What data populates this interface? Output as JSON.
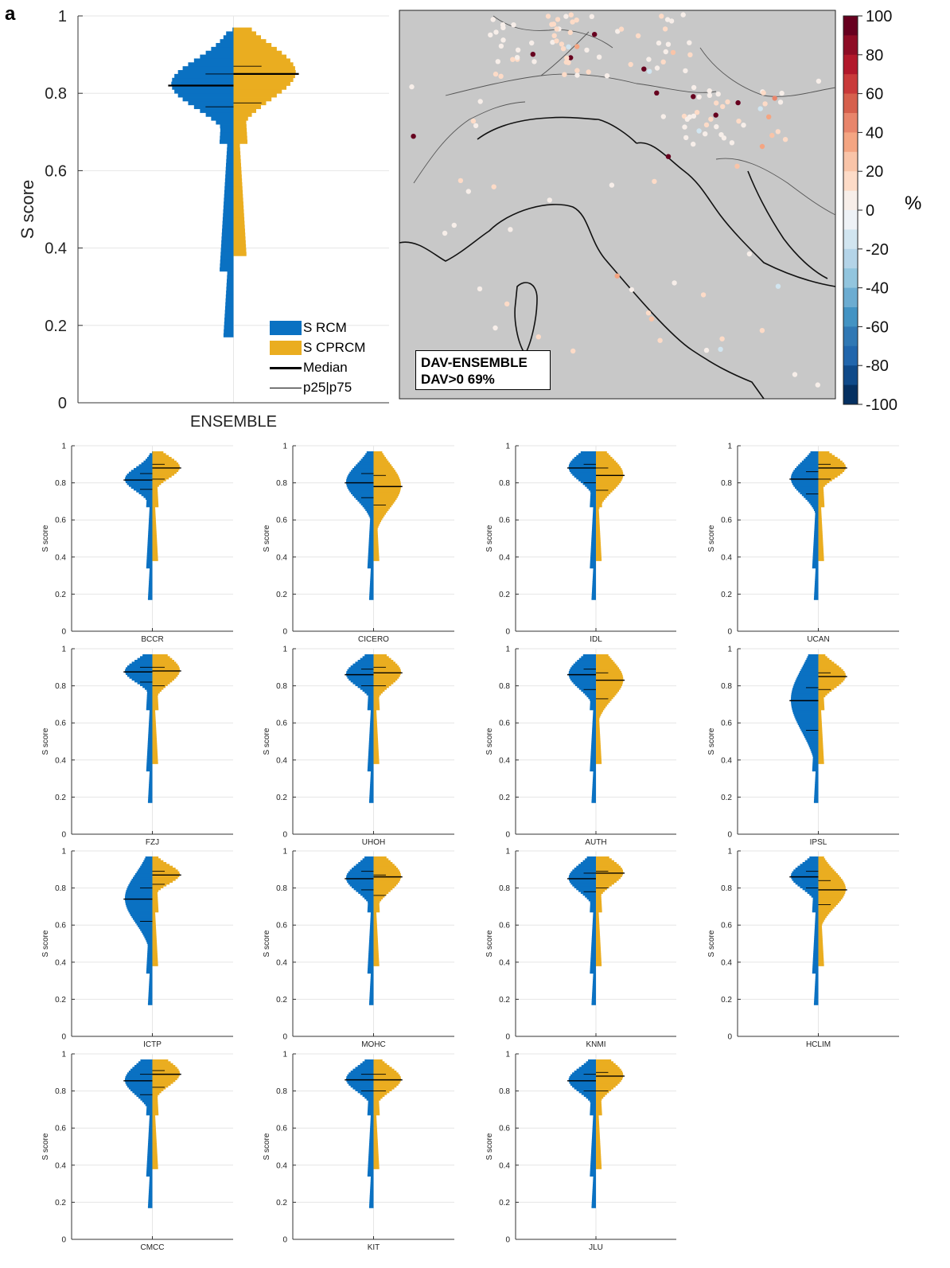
{
  "panel_label": "a",
  "colors": {
    "rcm": "#0a71c2",
    "cprcm": "#eaad20",
    "median": "#000000",
    "map_bg": "#c8c8c8"
  },
  "legend": {
    "rcm": "S RCM",
    "cprcm": "S CPRCM",
    "median": "Median",
    "pct": "p25|p75"
  },
  "map": {
    "title": "DAV-ENSEMBLE",
    "subtitle": "DAV>0 69%",
    "colorbar_ticks": [
      "100",
      "80",
      "60",
      "40",
      "20",
      "0",
      "-20",
      "-40",
      "-60",
      "-80",
      "-100"
    ],
    "colorbar_unit": "%"
  },
  "chart_data": [
    {
      "type": "bar",
      "name": "ENSEMBLE",
      "xlabel": "ENSEMBLE",
      "ylabel": "S score",
      "ylim": [
        0,
        1
      ],
      "yticks": [
        "0",
        "0.2",
        "0.4",
        "0.6",
        "0.8",
        "1"
      ],
      "series": [
        {
          "name": "S RCM",
          "side": "left",
          "median": 0.82,
          "p25": 0.765,
          "p75": 0.85
        },
        {
          "name": "S CPRCM",
          "side": "right",
          "median": 0.85,
          "p25": 0.775,
          "p75": 0.87
        }
      ]
    },
    {
      "type": "bar",
      "xlabel": "BCCR",
      "ylabel": "S score",
      "ylim": [
        0,
        1
      ],
      "yticks": [
        "0",
        "0.2",
        "0.4",
        "0.6",
        "0.8",
        "1"
      ],
      "series": [
        {
          "name": "S RCM",
          "median": 0.815,
          "p25": 0.765,
          "p75": 0.85
        },
        {
          "name": "S CPRCM",
          "median": 0.88,
          "p25": 0.82,
          "p75": 0.9
        }
      ]
    },
    {
      "type": "bar",
      "xlabel": "CICERO",
      "ylabel": "S score",
      "ylim": [
        0,
        1
      ],
      "yticks": [
        "0",
        "0.2",
        "0.4",
        "0.6",
        "0.8",
        "1"
      ],
      "series": [
        {
          "name": "S RCM",
          "median": 0.8,
          "p25": 0.72,
          "p75": 0.85
        },
        {
          "name": "S CPRCM",
          "median": 0.78,
          "p25": 0.68,
          "p75": 0.84
        }
      ]
    },
    {
      "type": "bar",
      "xlabel": "IDL",
      "ylabel": "S score",
      "ylim": [
        0,
        1
      ],
      "yticks": [
        "0",
        "0.2",
        "0.4",
        "0.6",
        "0.8",
        "1"
      ],
      "series": [
        {
          "name": "S RCM",
          "median": 0.88,
          "p25": 0.8,
          "p75": 0.9
        },
        {
          "name": "S CPRCM",
          "median": 0.84,
          "p25": 0.76,
          "p75": 0.88
        }
      ]
    },
    {
      "type": "bar",
      "xlabel": "UCAN",
      "ylabel": "S score",
      "ylim": [
        0,
        1
      ],
      "yticks": [
        "0",
        "0.2",
        "0.4",
        "0.6",
        "0.8",
        "1"
      ],
      "series": [
        {
          "name": "S RCM",
          "median": 0.82,
          "p25": 0.74,
          "p75": 0.86
        },
        {
          "name": "S CPRCM",
          "median": 0.88,
          "p25": 0.82,
          "p75": 0.9
        }
      ]
    },
    {
      "type": "bar",
      "xlabel": "FZJ",
      "ylabel": "S score",
      "ylim": [
        0,
        1
      ],
      "yticks": [
        "0",
        "0.2",
        "0.4",
        "0.6",
        "0.8",
        "1"
      ],
      "series": [
        {
          "name": "S RCM",
          "median": 0.875,
          "p25": 0.82,
          "p75": 0.9
        },
        {
          "name": "S CPRCM",
          "median": 0.88,
          "p25": 0.8,
          "p75": 0.9
        }
      ]
    },
    {
      "type": "bar",
      "xlabel": "UHOH",
      "ylabel": "S score",
      "ylim": [
        0,
        1
      ],
      "yticks": [
        "0",
        "0.2",
        "0.4",
        "0.6",
        "0.8",
        "1"
      ],
      "series": [
        {
          "name": "S RCM",
          "median": 0.86,
          "p25": 0.8,
          "p75": 0.89
        },
        {
          "name": "S CPRCM",
          "median": 0.87,
          "p25": 0.8,
          "p75": 0.9
        }
      ]
    },
    {
      "type": "bar",
      "xlabel": "AUTH",
      "ylabel": "S score",
      "ylim": [
        0,
        1
      ],
      "yticks": [
        "0",
        "0.2",
        "0.4",
        "0.6",
        "0.8",
        "1"
      ],
      "series": [
        {
          "name": "S RCM",
          "median": 0.86,
          "p25": 0.78,
          "p75": 0.89
        },
        {
          "name": "S CPRCM",
          "median": 0.83,
          "p25": 0.73,
          "p75": 0.87
        }
      ]
    },
    {
      "type": "bar",
      "xlabel": "IPSL",
      "ylabel": "S score",
      "ylim": [
        0,
        1
      ],
      "yticks": [
        "0",
        "0.2",
        "0.4",
        "0.6",
        "0.8",
        "1"
      ],
      "series": [
        {
          "name": "S RCM",
          "median": 0.72,
          "p25": 0.56,
          "p75": 0.79
        },
        {
          "name": "S CPRCM",
          "median": 0.85,
          "p25": 0.78,
          "p75": 0.87
        }
      ]
    },
    {
      "type": "bar",
      "xlabel": "ICTP",
      "ylabel": "S score",
      "ylim": [
        0,
        1
      ],
      "yticks": [
        "0",
        "0.2",
        "0.4",
        "0.6",
        "0.8",
        "1"
      ],
      "series": [
        {
          "name": "S RCM",
          "median": 0.74,
          "p25": 0.62,
          "p75": 0.8
        },
        {
          "name": "S CPRCM",
          "median": 0.87,
          "p25": 0.82,
          "p75": 0.89
        }
      ]
    },
    {
      "type": "bar",
      "xlabel": "MOHC",
      "ylabel": "S score",
      "ylim": [
        0,
        1
      ],
      "yticks": [
        "0",
        "0.2",
        "0.4",
        "0.6",
        "0.8",
        "1"
      ],
      "series": [
        {
          "name": "S RCM",
          "median": 0.85,
          "p25": 0.79,
          "p75": 0.89
        },
        {
          "name": "S CPRCM",
          "median": 0.86,
          "p25": 0.76,
          "p75": 0.87
        }
      ]
    },
    {
      "type": "bar",
      "xlabel": "KNMI",
      "ylabel": "S score",
      "ylim": [
        0,
        1
      ],
      "yticks": [
        "0",
        "0.2",
        "0.4",
        "0.6",
        "0.8",
        "1"
      ],
      "series": [
        {
          "name": "S RCM",
          "median": 0.85,
          "p25": 0.78,
          "p75": 0.88
        },
        {
          "name": "S CPRCM",
          "median": 0.88,
          "p25": 0.8,
          "p75": 0.89
        }
      ]
    },
    {
      "type": "bar",
      "xlabel": "HCLIM",
      "ylabel": "S score",
      "ylim": [
        0,
        1
      ],
      "yticks": [
        "0",
        "0.2",
        "0.4",
        "0.6",
        "0.8",
        "1"
      ],
      "series": [
        {
          "name": "S RCM",
          "median": 0.86,
          "p25": 0.8,
          "p75": 0.89
        },
        {
          "name": "S CPRCM",
          "median": 0.79,
          "p25": 0.71,
          "p75": 0.84
        }
      ]
    },
    {
      "type": "bar",
      "xlabel": "CMCC",
      "ylabel": "S score",
      "ylim": [
        0,
        1
      ],
      "yticks": [
        "0",
        "0.2",
        "0.4",
        "0.6",
        "0.8",
        "1"
      ],
      "series": [
        {
          "name": "S RCM",
          "median": 0.855,
          "p25": 0.78,
          "p75": 0.89
        },
        {
          "name": "S CPRCM",
          "median": 0.89,
          "p25": 0.82,
          "p75": 0.91
        }
      ]
    },
    {
      "type": "bar",
      "xlabel": "KIT",
      "ylabel": "S score",
      "ylim": [
        0,
        1
      ],
      "yticks": [
        "0",
        "0.2",
        "0.4",
        "0.6",
        "0.8",
        "1"
      ],
      "series": [
        {
          "name": "S RCM",
          "median": 0.86,
          "p25": 0.8,
          "p75": 0.89
        },
        {
          "name": "S CPRCM",
          "median": 0.86,
          "p25": 0.8,
          "p75": 0.89
        }
      ]
    },
    {
      "type": "bar",
      "xlabel": "JLU",
      "ylabel": "S score",
      "ylim": [
        0,
        1
      ],
      "yticks": [
        "0",
        "0.2",
        "0.4",
        "0.6",
        "0.8",
        "1"
      ],
      "series": [
        {
          "name": "S RCM",
          "median": 0.855,
          "p25": 0.8,
          "p75": 0.89
        },
        {
          "name": "S CPRCM",
          "median": 0.88,
          "p25": 0.8,
          "p75": 0.9
        }
      ]
    }
  ]
}
